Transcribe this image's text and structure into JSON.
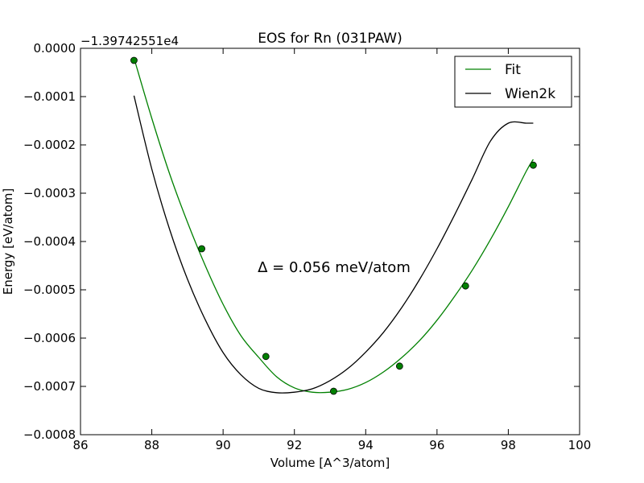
{
  "chart_data": {
    "type": "line",
    "title": "EOS for Rn (031PAW)",
    "xlabel": "Volume [A^3/atom]",
    "ylabel": "Energy [eV/atom]",
    "offset_text": "−1.39742551e4",
    "annotation": "Δ = 0.056 meV/atom",
    "xlim": [
      86,
      100
    ],
    "ylim": [
      -0.0008,
      0.0
    ],
    "x_ticks": [
      86,
      88,
      90,
      92,
      94,
      96,
      98,
      100
    ],
    "x_tick_labels": [
      "86",
      "88",
      "90",
      "92",
      "94",
      "96",
      "98",
      "100"
    ],
    "y_ticks": [
      0.0,
      -0.0001,
      -0.0002,
      -0.0003,
      -0.0004,
      -0.0005,
      -0.0006,
      -0.0007,
      -0.0008
    ],
    "y_tick_labels": [
      "0.0000",
      "−0.0001",
      "−0.0002",
      "−0.0003",
      "−0.0004",
      "−0.0005",
      "−0.0006",
      "−0.0007",
      "−0.0008"
    ],
    "grid": false,
    "legend_position": "top-right",
    "colors": {
      "fit": "#008000",
      "wien2k": "#000000",
      "points": "#008000"
    },
    "series": [
      {
        "name": "Fit",
        "color": "#008000",
        "x": [
          87.5,
          88.0,
          88.5,
          89.0,
          89.5,
          90.0,
          90.5,
          91.0,
          91.5,
          92.0,
          92.5,
          93.0,
          93.5,
          94.0,
          94.5,
          95.0,
          95.5,
          96.0,
          96.5,
          97.0,
          97.5,
          98.0,
          98.5,
          98.7
        ],
        "y": [
          -2e-05,
          -0.000145,
          -0.00026,
          -0.00036,
          -0.00045,
          -0.00053,
          -0.000595,
          -0.00064,
          -0.00068,
          -0.000703,
          -0.000712,
          -0.000712,
          -0.000706,
          -0.000692,
          -0.00067,
          -0.000641,
          -0.000606,
          -0.000563,
          -0.000513,
          -0.000458,
          -0.000396,
          -0.000328,
          -0.000255,
          -0.00023
        ]
      },
      {
        "name": "Wien2k",
        "color": "#000000",
        "x": [
          87.5,
          88.0,
          88.5,
          89.0,
          89.5,
          90.0,
          90.5,
          91.0,
          91.5,
          92.0,
          92.5,
          93.0,
          93.5,
          94.0,
          94.5,
          95.0,
          95.5,
          96.0,
          96.5,
          97.0,
          97.5,
          98.0,
          98.5,
          98.7
        ],
        "y": [
          -9.8e-05,
          -0.00025,
          -0.000375,
          -0.000478,
          -0.000562,
          -0.00063,
          -0.000676,
          -0.000704,
          -0.000713,
          -0.000712,
          -0.000705,
          -0.000688,
          -0.000663,
          -0.000629,
          -0.000588,
          -0.000538,
          -0.00048,
          -0.000415,
          -0.000344,
          -0.000269,
          -0.000192,
          -0.000155,
          -0.000155,
          -0.000155
        ]
      },
      {
        "name": "",
        "kind": "points",
        "color": "#008000",
        "x": [
          87.5,
          89.4,
          91.2,
          93.1,
          94.95,
          96.8,
          98.7
        ],
        "y": [
          -2.5e-05,
          -0.000415,
          -0.000638,
          -0.00071,
          -0.000658,
          -0.000492,
          -0.000242
        ]
      }
    ]
  }
}
